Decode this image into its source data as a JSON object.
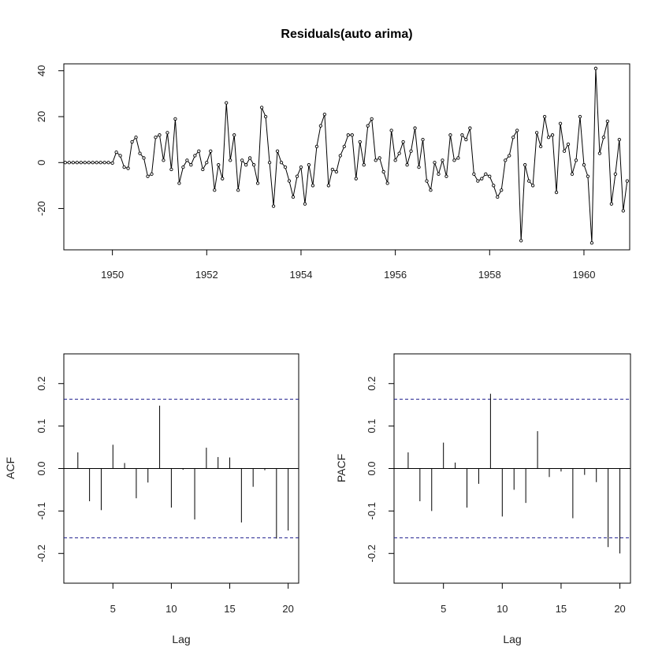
{
  "figure": {
    "background": "#ffffff",
    "line_color": "#000000",
    "ci_color": "#1a1a8c"
  },
  "chart_data": [
    {
      "type": "line",
      "title": "Residuals(auto arima)",
      "xlabel": "",
      "ylabel": "",
      "x_start": 1949.0,
      "x_step": 0.0833333,
      "xlim": [
        1948.97,
        1960.97
      ],
      "ylim": [
        -38,
        43
      ],
      "x_ticks": [
        1950,
        1952,
        1954,
        1956,
        1958,
        1960
      ],
      "x_tick_labels": [
        "1950",
        "1952",
        "1954",
        "1956",
        "1958",
        "1960"
      ],
      "y_ticks": [
        -20,
        0,
        20,
        40
      ],
      "y_tick_labels": [
        "-20",
        "0",
        "20",
        "40"
      ],
      "markers": "open-circle",
      "grid": false,
      "values": [
        0,
        0,
        0,
        0,
        0,
        0,
        0,
        0,
        0,
        0,
        0,
        0,
        -0.2,
        4.5,
        3,
        -2,
        -2.5,
        9,
        11,
        4,
        2,
        -6,
        -5,
        11,
        12,
        1,
        13,
        -3,
        19,
        -9,
        -2,
        1,
        -1,
        3,
        5,
        -3,
        0,
        5,
        -12,
        -1,
        -7,
        26,
        1,
        12,
        -12,
        1,
        -1,
        2,
        -1,
        -9,
        24,
        20,
        0,
        -19,
        5,
        0,
        -2,
        -8,
        -15,
        -6,
        -2,
        -18,
        -1,
        -10,
        7,
        16,
        21,
        -10,
        -3,
        -4,
        3,
        7,
        12,
        12,
        -7,
        9,
        -1,
        16,
        19,
        1,
        2,
        -4,
        -9,
        14,
        1,
        4,
        9,
        -1,
        5,
        15,
        -2,
        10,
        -8,
        -12,
        0,
        -5,
        1,
        -6,
        12,
        1,
        2,
        12,
        10,
        15,
        -5,
        -8,
        -7,
        -5,
        -6,
        -10,
        -15,
        -12,
        1,
        3,
        11,
        14,
        -34,
        -1,
        -8,
        -10,
        13,
        7,
        20,
        11,
        12,
        -13,
        17,
        5,
        8,
        -5,
        1,
        20,
        -1,
        -6,
        -35,
        41,
        4,
        11,
        18,
        -18,
        -5,
        10,
        -21,
        -8
      ]
    },
    {
      "type": "bar",
      "title": "",
      "xlabel": "Lag",
      "ylabel": "ACF",
      "xlim": [
        0.8,
        20.9
      ],
      "ylim": [
        -0.27,
        0.27
      ],
      "ci": [
        0.163,
        -0.163
      ],
      "x_ticks": [
        5,
        10,
        15,
        20
      ],
      "x_tick_labels": [
        "5",
        "10",
        "15",
        "20"
      ],
      "y_ticks": [
        -0.2,
        -0.1,
        0.0,
        0.1,
        0.2
      ],
      "y_tick_labels": [
        "-0.2",
        "-0.1",
        "0.0",
        "0.1",
        "0.2"
      ],
      "lags": [
        2,
        3,
        4,
        5,
        6,
        7,
        8,
        9,
        10,
        11,
        12,
        13,
        14,
        15,
        16,
        17,
        18,
        19,
        20
      ],
      "values": [
        0.038,
        -0.077,
        -0.098,
        0.056,
        0.013,
        -0.07,
        -0.033,
        0.148,
        -0.092,
        -0.003,
        -0.12,
        0.049,
        0.027,
        0.026,
        -0.127,
        -0.043,
        -0.004,
        -0.165,
        -0.146
      ]
    },
    {
      "type": "bar",
      "title": "",
      "xlabel": "Lag",
      "ylabel": "PACF",
      "xlim": [
        0.8,
        20.9
      ],
      "ylim": [
        -0.27,
        0.27
      ],
      "ci": [
        0.163,
        -0.163
      ],
      "x_ticks": [
        5,
        10,
        15,
        20
      ],
      "x_tick_labels": [
        "5",
        "10",
        "15",
        "20"
      ],
      "y_ticks": [
        -0.2,
        -0.1,
        0.0,
        0.1,
        0.2
      ],
      "y_tick_labels": [
        "-0.2",
        "-0.1",
        "0.0",
        "0.1",
        "0.2"
      ],
      "lags": [
        2,
        3,
        4,
        5,
        6,
        7,
        8,
        9,
        10,
        11,
        12,
        13,
        14,
        15,
        16,
        17,
        18,
        19,
        20
      ],
      "values": [
        0.038,
        -0.077,
        -0.1,
        0.061,
        0.014,
        -0.092,
        -0.036,
        0.176,
        -0.113,
        -0.05,
        -0.081,
        0.088,
        -0.02,
        -0.007,
        -0.117,
        -0.015,
        -0.032,
        -0.185,
        -0.2
      ]
    }
  ]
}
